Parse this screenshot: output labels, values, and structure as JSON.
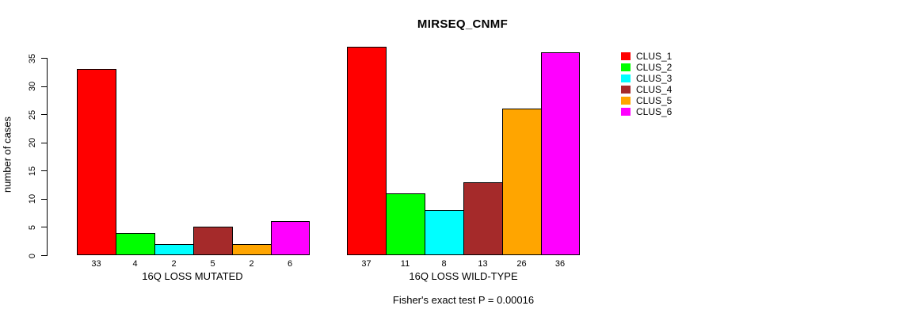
{
  "chart_data": {
    "type": "bar",
    "title": "MIRSEQ_CNMF",
    "ylabel": "number of cases",
    "yticks": [
      0,
      5,
      10,
      15,
      20,
      25,
      30,
      35
    ],
    "ylim": [
      0,
      37
    ],
    "grid": false,
    "legend_position": "right",
    "clusters": [
      {
        "name": "CLUS_1",
        "color": "#FF0000"
      },
      {
        "name": "CLUS_2",
        "color": "#00FF00"
      },
      {
        "name": "CLUS_3",
        "color": "#00FFFF"
      },
      {
        "name": "CLUS_4",
        "color": "#A52A2A"
      },
      {
        "name": "CLUS_5",
        "color": "#FFA500"
      },
      {
        "name": "CLUS_6",
        "color": "#FF00FF"
      }
    ],
    "panels": [
      {
        "xlabel": "16Q LOSS MUTATED",
        "values": [
          33,
          4,
          2,
          5,
          2,
          6
        ]
      },
      {
        "xlabel": "16Q LOSS WILD-TYPE",
        "values": [
          37,
          11,
          8,
          13,
          26,
          36
        ]
      }
    ],
    "annotation": "Fisher's exact test P = 0.00016"
  }
}
